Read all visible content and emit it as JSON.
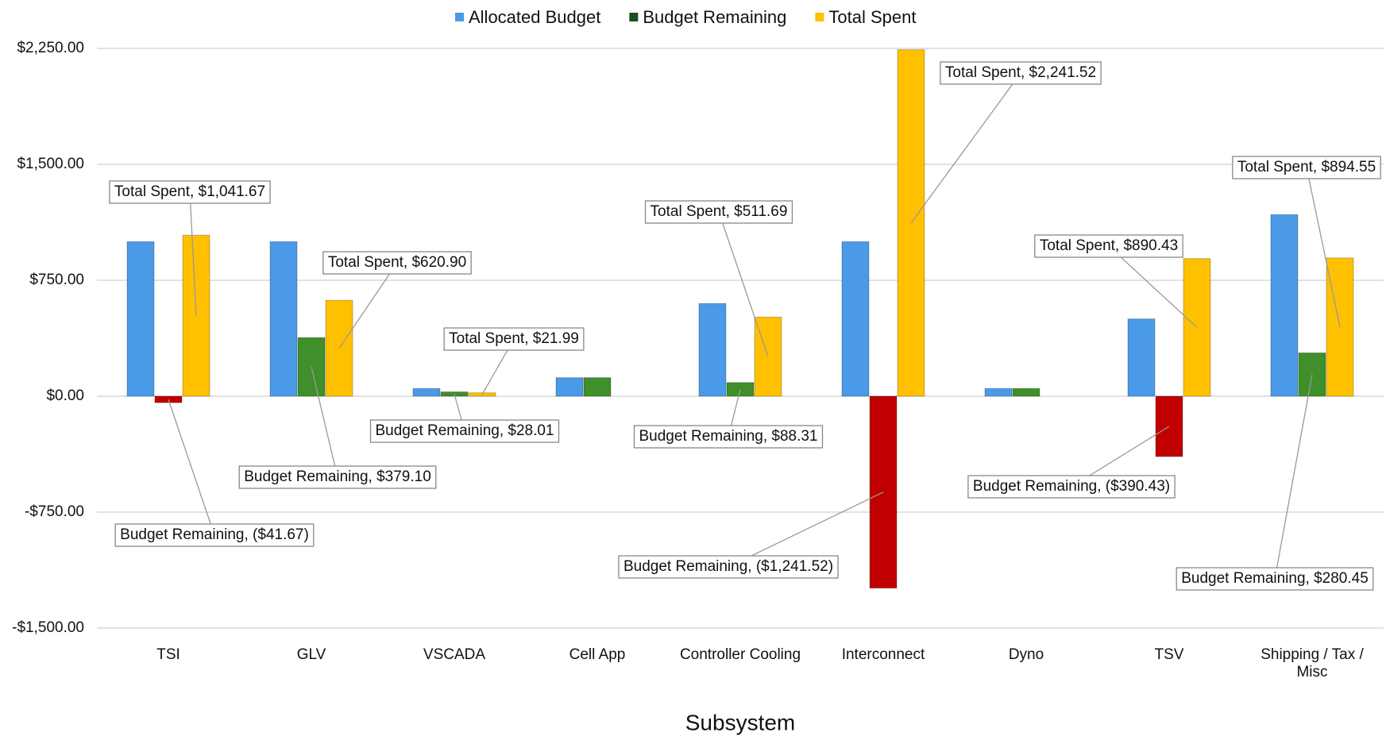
{
  "chart_data": {
    "type": "bar",
    "x_label": "Subsystem",
    "categories": [
      "TSI",
      "GLV",
      "VSCADA",
      "Cell App",
      "Controller Cooling",
      "Interconnect",
      "Dyno",
      "TSV",
      "Shipping / Tax / Misc"
    ],
    "series": [
      {
        "name": "Allocated Budget",
        "color": "#4a9ae8",
        "values": [
          1000,
          1000,
          50,
          120,
          600,
          1000,
          50,
          500,
          1175
        ]
      },
      {
        "name": "Budget Remaining",
        "color": "#1e4d1e",
        "bar_color": "#3f8f2a",
        "negative_color": "#c00000",
        "values": [
          -41.67,
          379.1,
          28.01,
          120,
          88.31,
          -1241.52,
          50,
          -390.43,
          280.45
        ],
        "value_labels": [
          "Budget Remaining, ($41.67)",
          "Budget Remaining, $379.10",
          "Budget Remaining, $28.01",
          null,
          "Budget Remaining, $88.31",
          "Budget Remaining, ($1,241.52)",
          null,
          "Budget Remaining, ($390.43)",
          "Budget Remaining, $280.45"
        ]
      },
      {
        "name": "Total Spent",
        "color": "#ffc000",
        "values": [
          1041.67,
          620.9,
          21.99,
          0,
          511.69,
          2241.52,
          0,
          890.43,
          894.55
        ],
        "value_labels": [
          "Total Spent, $1,041.67",
          "Total Spent, $620.90",
          "Total Spent, $21.99",
          null,
          "Total Spent, $511.69",
          "Total Spent, $2,241.52",
          null,
          "Total Spent, $890.43",
          "Total Spent, $894.55"
        ]
      }
    ],
    "ylim": [
      -1500,
      2250
    ],
    "yticks": [
      {
        "value": -1500,
        "label": "-$1,500.00"
      },
      {
        "value": -750,
        "label": "-$750.00"
      },
      {
        "value": 0,
        "label": "$0.00"
      },
      {
        "value": 750,
        "label": "$750.00"
      },
      {
        "value": 1500,
        "label": "$1,500.00"
      },
      {
        "value": 2250,
        "label": "$2,250.00"
      }
    ],
    "grid": true,
    "legend": "top"
  }
}
